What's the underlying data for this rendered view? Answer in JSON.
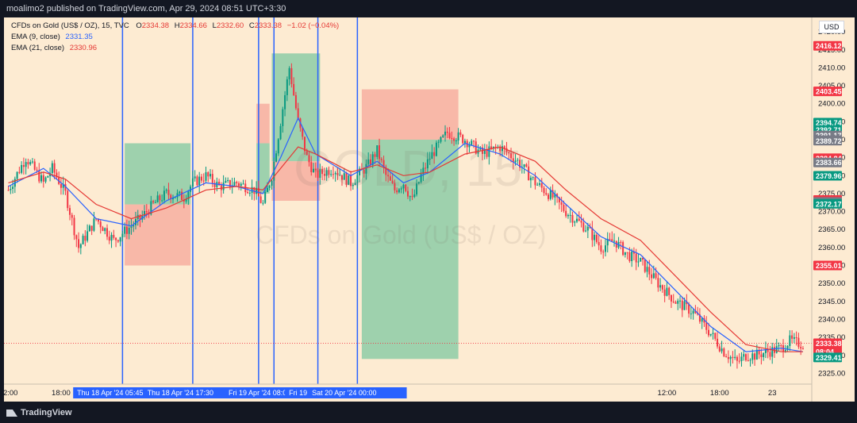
{
  "header": {
    "published": "moalimo2 published on TradingView.com, Apr 29, 2024 08:51 UTC+3:30"
  },
  "legend": {
    "symbol": "CFDs on Gold (US$ / OZ), 15, TVC",
    "o_label": "O",
    "o_value": "2334.38",
    "h_label": "H",
    "h_value": "2334.66",
    "l_label": "L",
    "l_value": "2332.60",
    "c_label": "C",
    "c_value": "2333.38",
    "change": "−1.02 (−0.04%)",
    "ema9_label": "EMA (9, close)",
    "ema9_value": "2331.35",
    "ema21_label": "EMA (21, close)",
    "ema21_value": "2330.96"
  },
  "currency": "USD",
  "watermark": {
    "symbol": "GOLD, 15",
    "name": "CFDs on Gold (US$ / OZ)"
  },
  "footer": {
    "brand": "TradingView"
  },
  "colors": {
    "background": "#fdebd2",
    "up": "#089981",
    "down": "#f23645",
    "vline": "#2962ff",
    "ema9": "#2962ff",
    "ema21": "#e53935",
    "profit_zone": "#7ec8a0",
    "loss_zone": "#f6a79a"
  },
  "chart_data": {
    "type": "candlestick",
    "instrument": "CFDs on Gold (US$ / OZ)",
    "timeframe": "15",
    "ylim": [
      2322,
      2424
    ],
    "y_ticks": [
      2325,
      2330,
      2335,
      2340,
      2345,
      2350,
      2355,
      2360,
      2365,
      2370,
      2375,
      2380,
      2385,
      2390,
      2395,
      2400,
      2405,
      2410,
      2415,
      2420
    ],
    "x_ticks": [
      {
        "label": "12:00",
        "x": 0
      },
      {
        "label": "18:00",
        "x": 24
      },
      {
        "label": "18",
        "x": 48
      },
      {
        "label": "12:00",
        "x": 96
      },
      {
        "label": "12:00",
        "x": 300
      },
      {
        "label": "18:00",
        "x": 324
      },
      {
        "label": "23",
        "x": 348
      }
    ],
    "price_series": {
      "name": "GOLD 15m",
      "x": [
        0,
        8,
        16,
        20,
        26,
        32,
        40,
        48,
        56,
        60,
        66,
        72,
        80,
        84,
        90,
        96,
        104,
        112,
        116,
        120,
        124,
        128,
        132,
        136,
        140,
        148,
        156,
        164,
        168,
        172,
        176,
        180,
        184,
        188,
        192,
        200,
        208,
        216,
        224,
        232,
        240,
        248,
        254,
        258,
        264,
        270,
        276,
        282,
        288,
        296,
        304,
        312,
        320,
        326,
        332,
        336,
        340,
        346,
        352,
        356,
        362
      ],
      "y": [
        2376,
        2385,
        2378,
        2382,
        2375,
        2360,
        2368,
        2362,
        2366,
        2368,
        2372,
        2375,
        2374,
        2378,
        2380,
        2377,
        2378,
        2376,
        2372,
        2380,
        2395,
        2410,
        2395,
        2385,
        2380,
        2382,
        2378,
        2383,
        2387,
        2380,
        2376,
        2378,
        2373,
        2380,
        2385,
        2392,
        2390,
        2386,
        2388,
        2384,
        2378,
        2374,
        2370,
        2368,
        2365,
        2360,
        2362,
        2358,
        2356,
        2350,
        2345,
        2342,
        2336,
        2331,
        2328,
        2330,
        2330,
        2331,
        2332,
        2334,
        2333
      ]
    },
    "ema9": {
      "name": "EMA (9, close)",
      "x": [
        0,
        16,
        26,
        40,
        56,
        72,
        90,
        104,
        116,
        124,
        132,
        140,
        156,
        168,
        180,
        192,
        208,
        224,
        240,
        254,
        270,
        288,
        304,
        320,
        336,
        352,
        362
      ],
      "y": [
        2377,
        2382,
        2377,
        2368,
        2366,
        2373,
        2378,
        2377,
        2375,
        2385,
        2396,
        2386,
        2380,
        2384,
        2378,
        2381,
        2389,
        2386,
        2380,
        2372,
        2363,
        2358,
        2348,
        2338,
        2331,
        2332,
        2331
      ]
    },
    "ema21": {
      "name": "EMA (21, close)",
      "x": [
        0,
        16,
        26,
        40,
        56,
        72,
        90,
        104,
        116,
        124,
        132,
        140,
        156,
        168,
        180,
        192,
        208,
        224,
        240,
        254,
        270,
        288,
        304,
        320,
        336,
        352,
        362
      ],
      "y": [
        2378,
        2381,
        2379,
        2372,
        2368,
        2371,
        2376,
        2377,
        2376,
        2382,
        2388,
        2386,
        2381,
        2383,
        2380,
        2381,
        2386,
        2388,
        2384,
        2376,
        2368,
        2362,
        2352,
        2342,
        2333,
        2331,
        2331
      ]
    },
    "vertical_markers": [
      {
        "x": 52,
        "label": "Thu 18 Apr '24   05:45"
      },
      {
        "x": 84,
        "label": "Thu 18 Apr '24   17:30"
      },
      {
        "x": 114,
        "label": "Fri 19 A"
      },
      {
        "x": 121,
        "label": "Fri 19 Apr '24   08:00"
      },
      {
        "x": 141,
        "label": "Fri 19 Apr '24"
      },
      {
        "x": 159,
        "label": "Sat 20 Apr '24   00:00"
      }
    ],
    "positions": [
      {
        "kind": "long",
        "x_start": 53,
        "x_end": 83,
        "entry": 2372,
        "target": 2389,
        "stop": 2355
      },
      {
        "kind": "short",
        "x_start": 113,
        "x_end": 119,
        "entry": 2389,
        "target": 2375,
        "stop": 2400
      },
      {
        "kind": "long",
        "x_start": 120,
        "x_end": 142,
        "entry": 2384,
        "target": 2414,
        "stop": 2373
      },
      {
        "kind": "short",
        "x_start": 161,
        "x_end": 205,
        "entry": 2390,
        "target": 2329,
        "stop": 2404
      }
    ],
    "price_labels": [
      {
        "value": "2416.12",
        "y": 2416.12,
        "color": "#f23645"
      },
      {
        "value": "2403.45",
        "y": 2403.45,
        "color": "#f23645"
      },
      {
        "value": "2394.74",
        "y": 2394.74,
        "color": "#089981"
      },
      {
        "value": "2392.71",
        "y": 2392.71,
        "color": "#089981"
      },
      {
        "value": "2391.17",
        "y": 2391.17,
        "color": "#787b86"
      },
      {
        "value": "2389.86",
        "y": 2389.86,
        "color": "#787b86"
      },
      {
        "value": "2389.72",
        "y": 2389.72,
        "color": "#787b86"
      },
      {
        "value": "2384.84",
        "y": 2384.84,
        "color": "#f23645"
      },
      {
        "value": "2383.66",
        "y": 2383.66,
        "color": "#787b86"
      },
      {
        "value": "2379.96",
        "y": 2379.96,
        "color": "#089981"
      },
      {
        "value": "2373.23",
        "y": 2373.23,
        "color": "#f23645"
      },
      {
        "value": "2372.67",
        "y": 2372.67,
        "color": "#787b86"
      },
      {
        "value": "2372.17",
        "y": 2372.17,
        "color": "#089981"
      },
      {
        "value": "2355.01",
        "y": 2355.01,
        "color": "#f23645"
      },
      {
        "value": "2333.38",
        "y": 2333.38,
        "color": "#f23645"
      },
      {
        "value": "08:04",
        "y": 2331.0,
        "color": "#f23645"
      },
      {
        "value": "2329.41",
        "y": 2329.41,
        "color": "#089981"
      }
    ],
    "last_price": 2333.38
  }
}
